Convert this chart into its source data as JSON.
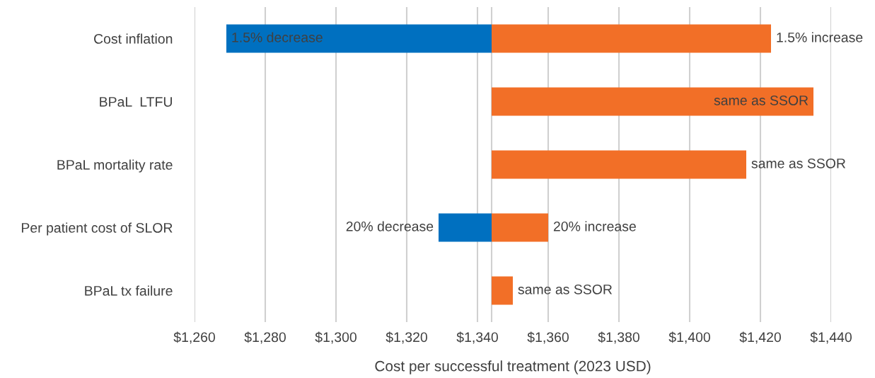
{
  "chart_data": {
    "type": "bar",
    "orientation": "horizontal",
    "categories": [
      "Cost inflation",
      "BPaL  LTFU",
      "BPaL mortality rate",
      "Per patient cost of SLOR",
      "BPaL tx failure"
    ],
    "series": [
      {
        "color": "#0070c0",
        "base": [
          1344,
          null,
          null,
          1344,
          null
        ],
        "values": [
          -75,
          null,
          null,
          -15,
          null
        ]
      },
      {
        "color": "#f26f27",
        "base": [
          1344,
          1344,
          1344,
          1344,
          1344
        ],
        "values": [
          79,
          91,
          72,
          16,
          6
        ]
      }
    ],
    "annotations": [
      {
        "text": "1.5% decrease",
        "x": 1269,
        "y": "Cost inflation"
      },
      {
        "text": "1.5% increase",
        "x": 1423,
        "y": "Cost inflation"
      },
      {
        "text": "same as SSOR",
        "x": 1435,
        "y": "BPaL  LTFU"
      },
      {
        "text": "same as SSOR",
        "x": 1416,
        "y": "BPaL mortality rate"
      },
      {
        "text": "20% decrease",
        "x": 1329,
        "y": "Per patient cost of SLOR"
      },
      {
        "text": "20% increase",
        "x": 1360,
        "y": "Per patient cost of SLOR"
      },
      {
        "text": "same as SSOR",
        "x": 1350,
        "y": "BPaL tx failure"
      }
    ],
    "xlabel": "Cost per successful treatment (2023 USD)",
    "xlim": [
      1260,
      1440
    ],
    "xticks": [
      {
        "value": 1260,
        "label": "$1,260"
      },
      {
        "value": 1280,
        "label": "$1,280"
      },
      {
        "value": 1300,
        "label": "$1,300"
      },
      {
        "value": 1320,
        "label": "$1,320"
      },
      {
        "value": 1340,
        "label": "$1,340"
      },
      {
        "value": 1360,
        "label": "$1,360"
      },
      {
        "value": 1380,
        "label": "$1,380"
      },
      {
        "value": 1400,
        "label": "$1,400"
      },
      {
        "value": 1420,
        "label": "$1,420"
      },
      {
        "value": 1440,
        "label": "$1,440"
      }
    ],
    "ref_lines": [
      {
        "axis": "x",
        "value": 1344,
        "color": "#d0d0d0"
      }
    ],
    "grid": "x",
    "legend": false
  }
}
